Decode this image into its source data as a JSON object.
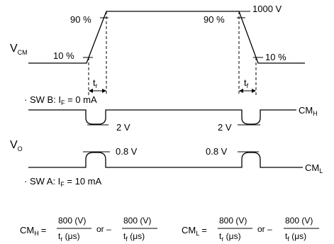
{
  "vcm": {
    "symbol_main": "V",
    "symbol_sub": "CM",
    "pct_90": "90 %",
    "pct_10": "10 %",
    "peak": "1000 V",
    "tr_main": "t",
    "tr_sub": "r",
    "tf_main": "t",
    "tf_sub": "f"
  },
  "vo": {
    "symbol_main": "V",
    "symbol_sub": "O",
    "swb_pre": "· SW B: I",
    "swb_sub": "F",
    "swb_post": " = 0 mA",
    "swa_pre": "· SW A: I",
    "swa_sub": "F",
    "swa_post": " = 10 mA",
    "dip_level": "2 V",
    "bump_level": "0.8 V",
    "cmh_main": "CM",
    "cmh_sub": "H",
    "cml_main": "CM",
    "cml_sub": "L"
  },
  "formulas": {
    "cmh_main": "CM",
    "cmh_sub": "H",
    "cml_main": "CM",
    "cml_sub": "L",
    "equals": "=",
    "numerator": "800 (V)",
    "tr_main": "t",
    "tr_sub": "r",
    "tf_main": "t",
    "tf_sub": "f",
    "unit": " (μs)",
    "or_minus": "or –"
  }
}
